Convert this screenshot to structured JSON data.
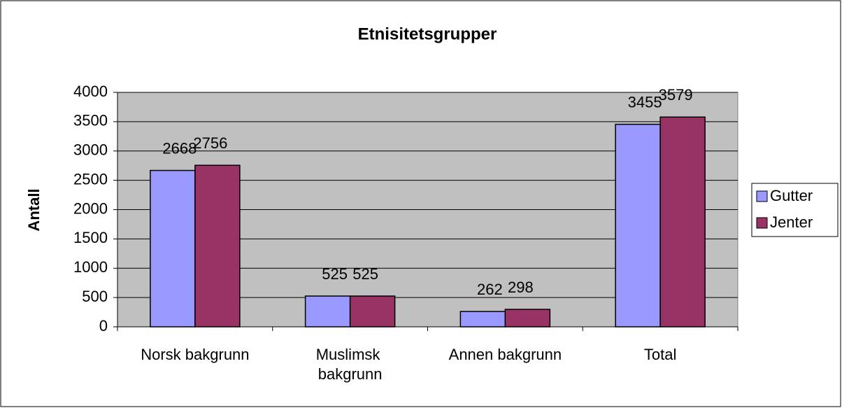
{
  "chart_data": {
    "type": "bar",
    "title": "Etnisitetsgrupper",
    "y_label": "Antall",
    "categories": [
      "Norsk bakgrunn",
      "Muslimsk bakgrunn",
      "Annen bakgrunn",
      "Total"
    ],
    "series": [
      {
        "name": "Gutter",
        "color": "#9999ff",
        "values": [
          2668,
          525,
          262,
          3455
        ]
      },
      {
        "name": "Jenter",
        "color": "#993366",
        "values": [
          2756,
          525,
          298,
          3579
        ]
      }
    ],
    "ylim": [
      0,
      4000
    ],
    "yticks": [
      0,
      500,
      1000,
      1500,
      2000,
      2500,
      3000,
      3500,
      4000
    ],
    "grid": true,
    "legend": "right"
  }
}
